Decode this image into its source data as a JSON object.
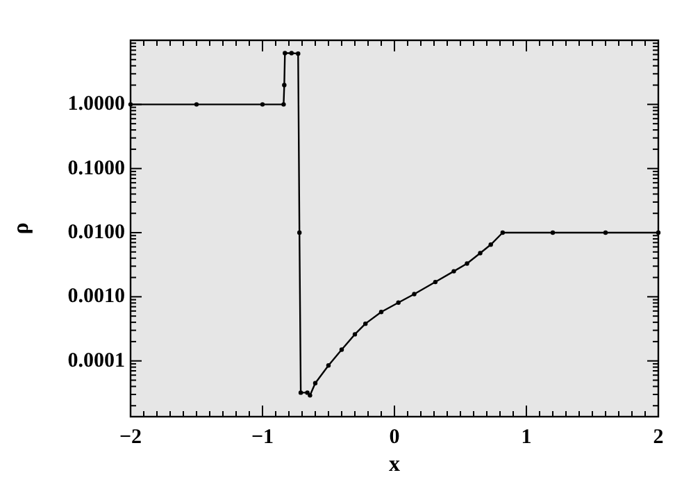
{
  "chart_data": {
    "type": "line",
    "xlabel": "x",
    "ylabel": "ρ",
    "log": "y",
    "marker": "circle",
    "line_style": "solid",
    "grid": false,
    "xlim": [
      -2,
      2
    ],
    "xticks": [
      -2,
      {
        "value": -1.9,
        "label": null
      },
      {
        "value": -1.8,
        "label": null
      },
      {
        "value": -1.7,
        "label": null
      },
      {
        "value": -1.6,
        "label": null
      },
      {
        "value": -1.5,
        "label": null
      },
      {
        "value": -1.4,
        "label": null
      },
      {
        "value": -1.3,
        "label": null
      },
      {
        "value": -1.2,
        "label": null
      },
      {
        "value": -1.1,
        "label": null
      },
      -1,
      {
        "value": -0.9,
        "label": null
      },
      {
        "value": -0.8,
        "label": null
      },
      {
        "value": -0.7,
        "label": null
      },
      {
        "value": -0.6,
        "label": null
      },
      {
        "value": -0.5,
        "label": null
      },
      {
        "value": -0.4,
        "label": null
      },
      {
        "value": -0.3,
        "label": null
      },
      {
        "value": -0.2,
        "label": null
      },
      {
        "value": -0.1,
        "label": null
      },
      0,
      {
        "value": 0.1,
        "label": null
      },
      {
        "value": 0.2,
        "label": null
      },
      {
        "value": 0.3,
        "label": null
      },
      {
        "value": 0.4,
        "label": null
      },
      {
        "value": 0.5,
        "label": null
      },
      {
        "value": 0.6,
        "label": null
      },
      {
        "value": 0.7,
        "label": null
      },
      {
        "value": 0.8,
        "label": null
      },
      {
        "value": 0.9,
        "label": null
      },
      1,
      {
        "value": 1.1,
        "label": null
      },
      {
        "value": 1.2,
        "label": null
      },
      {
        "value": 1.3,
        "label": null
      },
      {
        "value": 1.4,
        "label": null
      },
      {
        "value": 1.5,
        "label": null
      },
      {
        "value": 1.6,
        "label": null
      },
      {
        "value": 1.7,
        "label": null
      },
      {
        "value": 1.8,
        "label": null
      },
      {
        "value": 1.9,
        "label": null
      },
      2
    ],
    "ylim": [
      1.35e-05,
      10
    ],
    "yticks": [
      {
        "value": 0.0001,
        "label": "0.0001"
      },
      {
        "value": 0.001,
        "label": "0.0010"
      },
      {
        "value": 0.01,
        "label": "0.0100"
      },
      {
        "value": 0.1,
        "label": "0.1000"
      },
      {
        "value": 1,
        "label": "1.0000"
      }
    ],
    "series": [
      {
        "color": "#000000",
        "x": [
          -2,
          -1.5,
          -1,
          -0.84,
          -0.835,
          -0.83,
          -0.78,
          -0.73,
          -0.72,
          -0.71,
          -0.66,
          -0.64,
          -0.6,
          -0.5,
          -0.4,
          -0.3,
          -0.22,
          -0.1,
          0.03,
          0.15,
          0.31,
          0.45,
          0.55,
          0.65,
          0.73,
          0.82,
          1.2,
          1.6,
          2
        ],
        "values": [
          1,
          1,
          1,
          1,
          2,
          6.3,
          6.3,
          6.2,
          0.01,
          3.2e-05,
          3.2e-05,
          2.9e-05,
          4.5e-05,
          8.5e-05,
          0.00015,
          0.00026,
          0.00038,
          0.00058,
          0.00081,
          0.0011,
          0.0017,
          0.0025,
          0.0033,
          0.0048,
          0.0065,
          0.01,
          0.01,
          0.01,
          0.01
        ]
      }
    ]
  }
}
